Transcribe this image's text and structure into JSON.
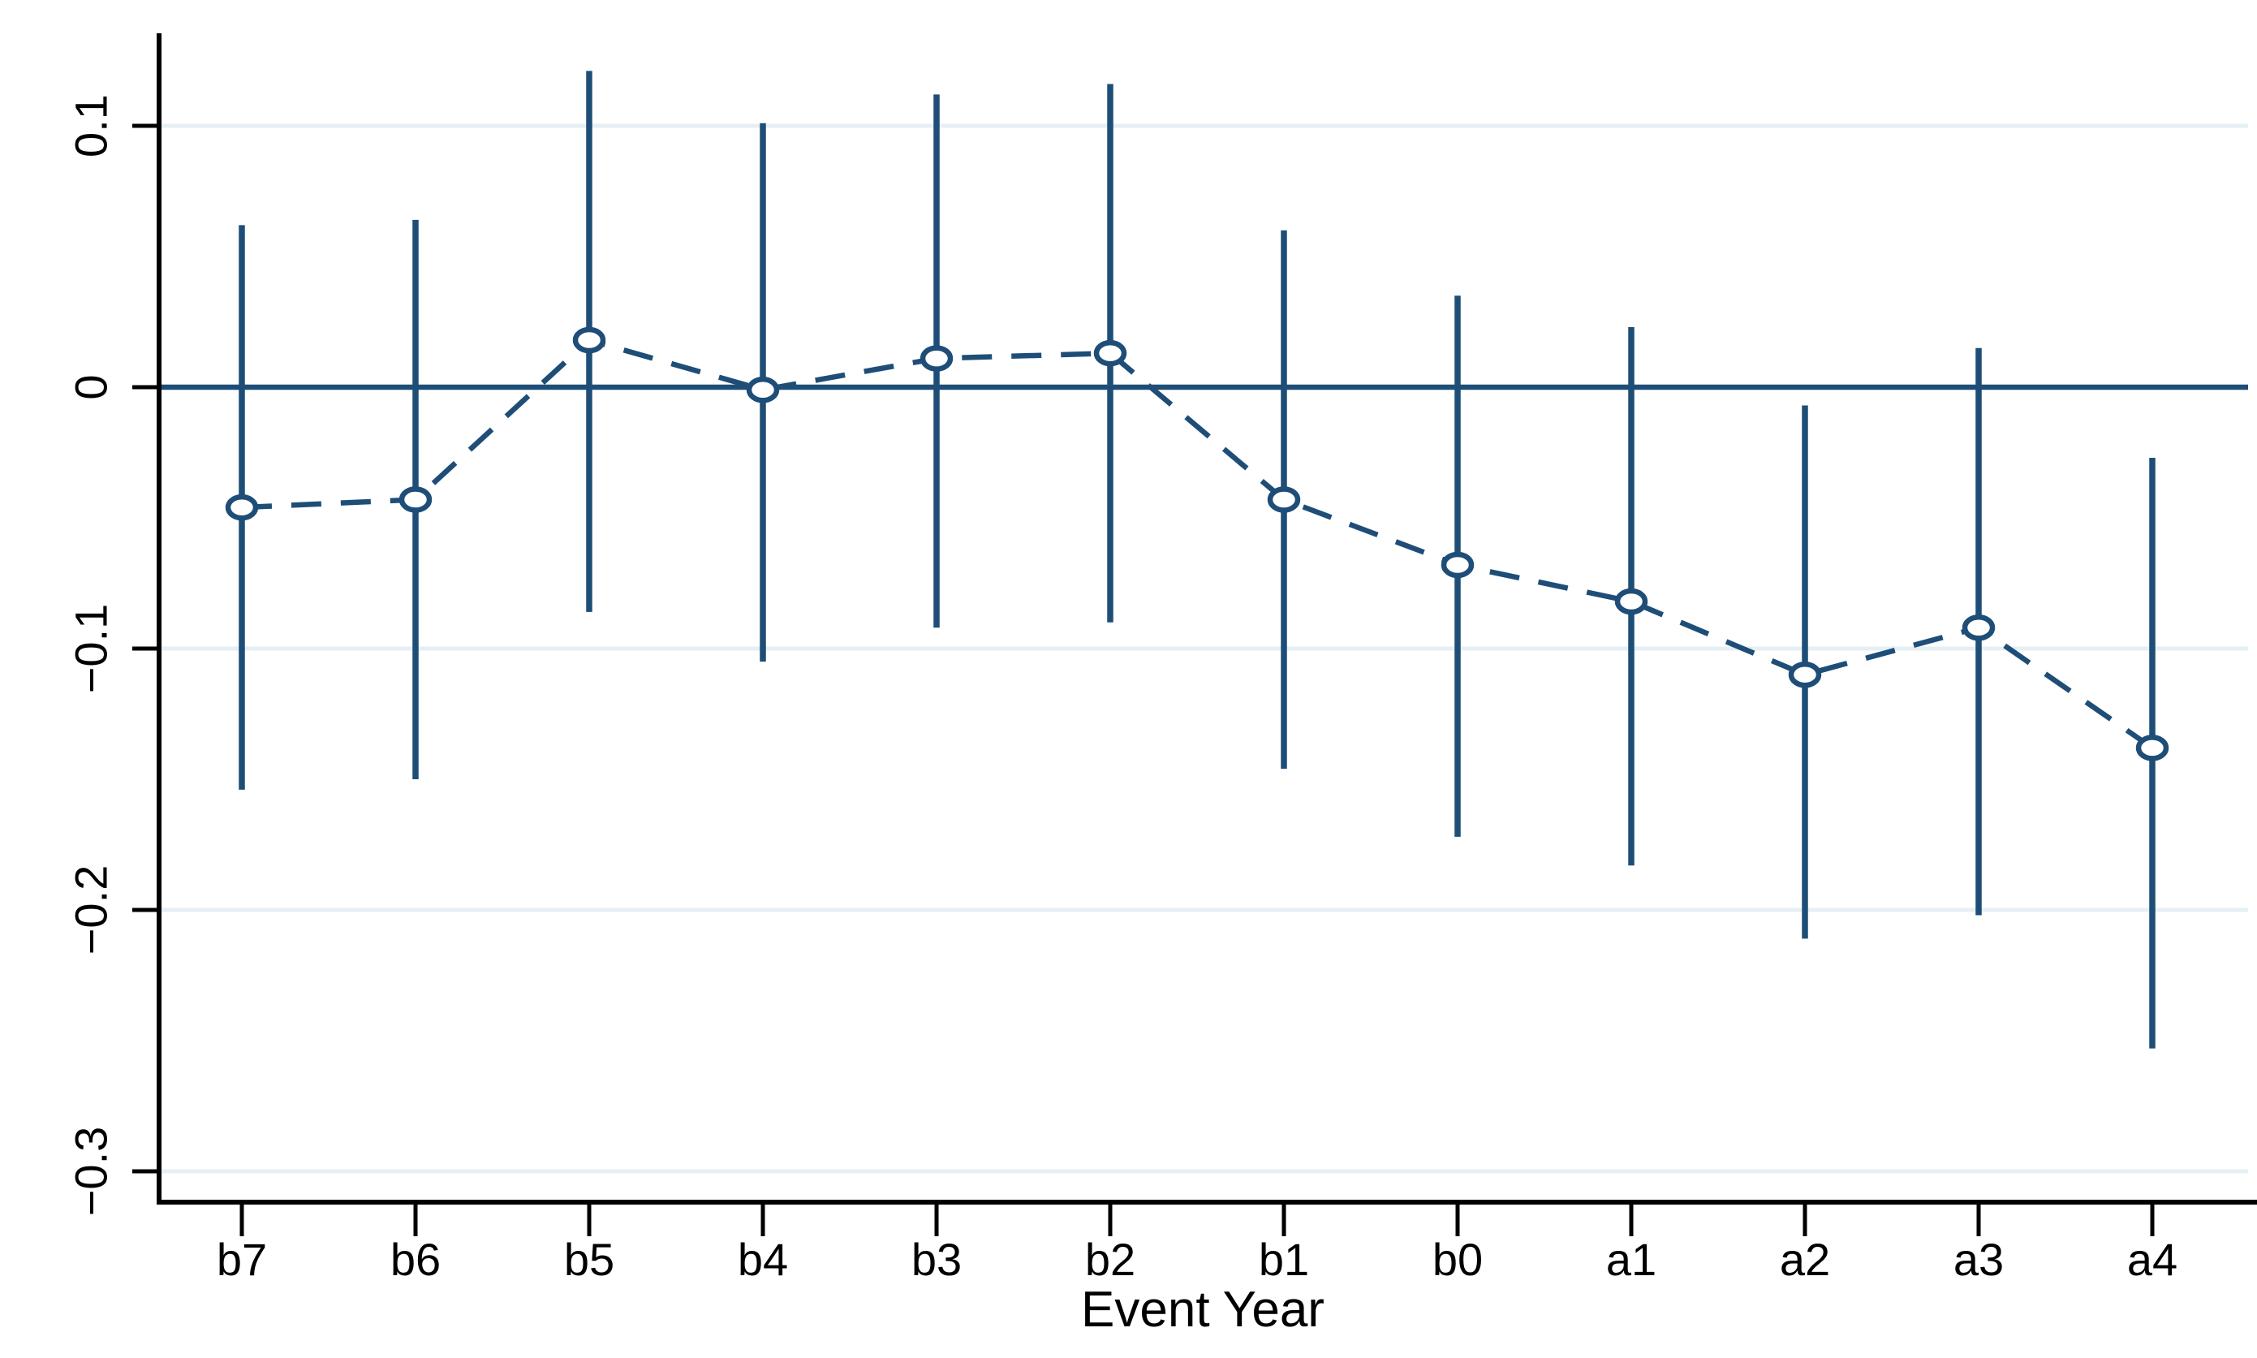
{
  "chart_data": {
    "type": "scatter",
    "subtype": "event-study-coefplot-with-error-bars",
    "title": "",
    "xlabel": "Event Year",
    "ylabel": "",
    "categories": [
      "b7",
      "b6",
      "b5",
      "b4",
      "b3",
      "b2",
      "b1",
      "b0",
      "a1",
      "a2",
      "a3",
      "a4"
    ],
    "series": [
      {
        "name": "coefficient-estimates",
        "marker": "open-circle",
        "line_style": "dashed",
        "values": [
          -0.046,
          -0.043,
          0.018,
          -0.001,
          0.011,
          0.013,
          -0.043,
          -0.068,
          -0.082,
          -0.11,
          -0.092,
          -0.138
        ],
        "ci_lower": [
          -0.154,
          -0.15,
          -0.086,
          -0.105,
          -0.092,
          -0.09,
          -0.146,
          -0.172,
          -0.183,
          -0.211,
          -0.202,
          -0.253
        ],
        "ci_upper": [
          0.062,
          0.064,
          0.121,
          0.101,
          0.112,
          0.116,
          0.06,
          0.035,
          0.023,
          -0.007,
          0.015,
          -0.027
        ]
      }
    ],
    "yticks": [
      0.1,
      0,
      -0.1,
      -0.2,
      -0.3
    ],
    "ytick_labels": [
      "0.1",
      "0",
      "−0.1",
      "−0.2",
      "−0.3"
    ],
    "ylim": [
      -0.312,
      0.135
    ],
    "reference_line_y": 0,
    "grid": true,
    "legend": false,
    "colors": {
      "series": "#1e4e77",
      "reference_line": "#1e4e77",
      "grid": "#e6eff4",
      "axis": "#000000",
      "text": "#000000",
      "marker_fill": "#ffffff"
    }
  }
}
